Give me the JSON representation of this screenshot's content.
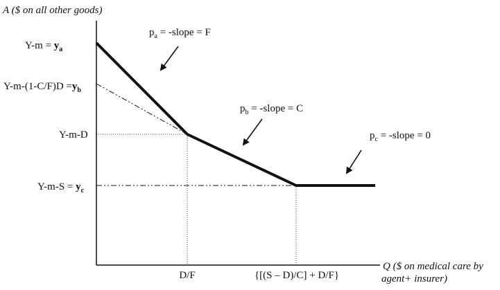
{
  "axes": {
    "y_label": "A ($ on  all other goods)",
    "x_label_line1": "Q ($ on  medical care by",
    "x_label_line2": "agent+ insurer)"
  },
  "y_ticks": {
    "ya": {
      "prefix": "Y-m = ",
      "sym": "y",
      "sub": "a"
    },
    "yb": {
      "prefix": "Y-m-(1-C/F)D =",
      "sym": "y",
      "sub": "b"
    },
    "ymd": {
      "text": "Y-m-D"
    },
    "yc": {
      "prefix": "Y-m-S = ",
      "sym": "y",
      "sub": "c"
    }
  },
  "x_ticks": {
    "df": "D/F",
    "sdc": "{[(S – D)/C] + D/F}"
  },
  "annotations": {
    "pa": {
      "p": "p",
      "sub": "a",
      "rest": " = -slope = F"
    },
    "pb": {
      "p": "p",
      "sub": "b",
      "rest": " = -slope = C"
    },
    "pc": {
      "p": "p",
      "sub": "c",
      "rest": " = -slope = 0"
    }
  },
  "colors": {
    "ink": "#111111",
    "background": "#ffffff"
  }
}
